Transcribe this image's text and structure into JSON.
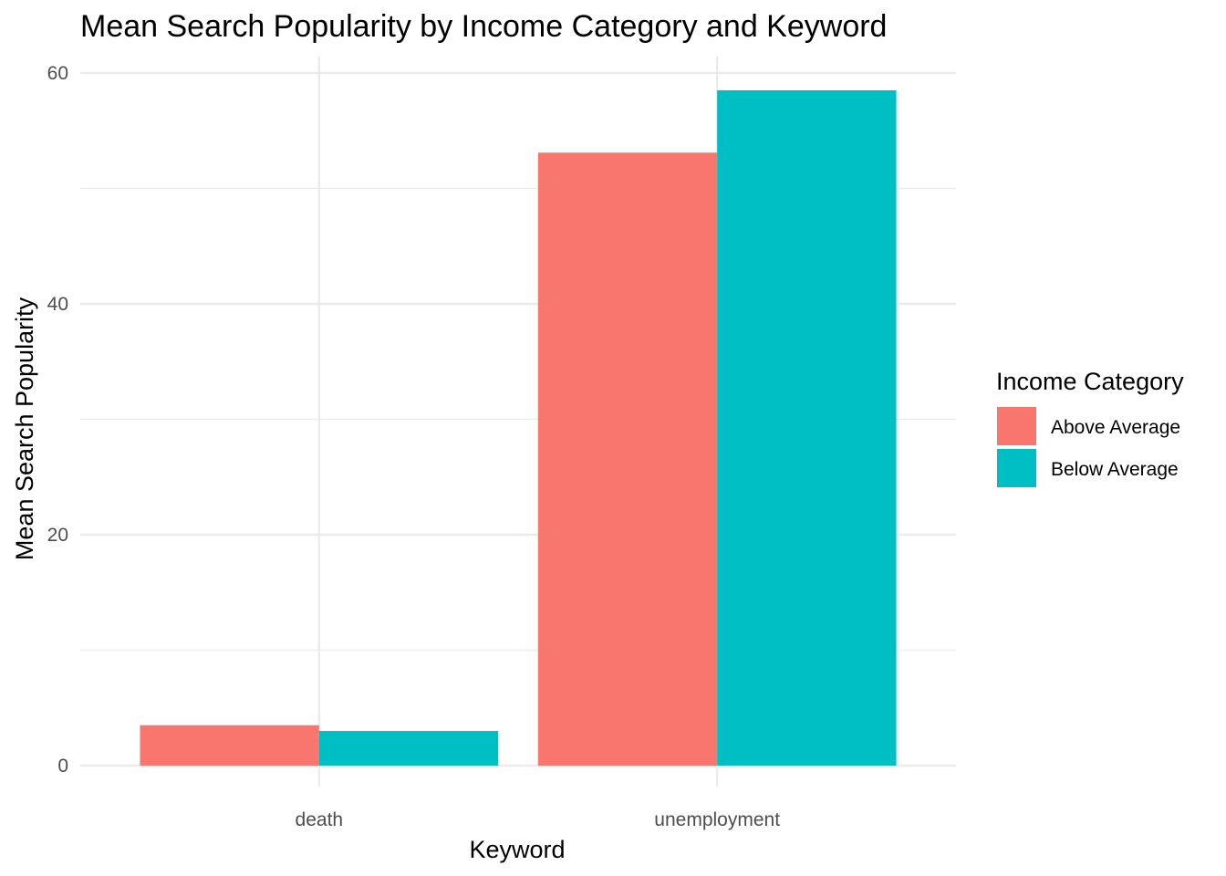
{
  "chart_data": {
    "type": "bar",
    "title": "Mean Search Popularity by Income Category and Keyword",
    "xlabel": "Keyword",
    "ylabel": "Mean Search Popularity",
    "categories": [
      "death",
      "unemployment"
    ],
    "series": [
      {
        "name": "Above Average",
        "color": "#F8766D",
        "values": [
          3.5,
          53.1
        ]
      },
      {
        "name": "Below Average",
        "color": "#00BFC4",
        "values": [
          3.0,
          58.5
        ]
      }
    ],
    "ylim": [
      0,
      60
    ],
    "yticks": [
      0,
      20,
      40,
      60
    ],
    "grid": true,
    "legend": {
      "title": "Income Category",
      "placement": "right"
    }
  }
}
